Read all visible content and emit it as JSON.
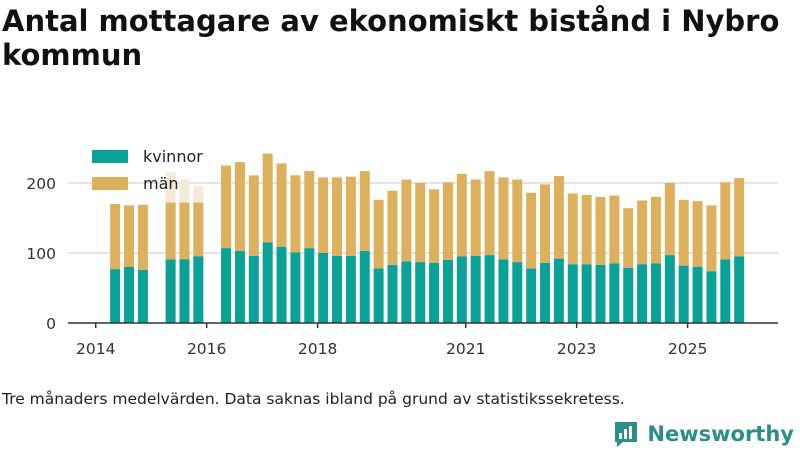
{
  "title": "Antal mottagare av ekonomiskt bistånd i Nybro kommun",
  "caption": "Tre månaders medelvärden. Data saknas ibland på grund av statistikssekretess.",
  "brand": "Newsworthy",
  "brand_icon": "newsworthy-logo-icon",
  "colors": {
    "kvinnor": "#0aa197",
    "man": "#ddb05d",
    "man_faded": "#f4ead8",
    "grid": "#dcdcdc",
    "axis": "#333333",
    "brand": "#2a8f88"
  },
  "chart_data": {
    "type": "bar",
    "stacked": true,
    "title": "Antal mottagare av ekonomiskt bistånd i Nybro kommun",
    "xlabel": "",
    "ylabel": "",
    "ylim": [
      0,
      250
    ],
    "yticks": [
      0,
      100,
      200
    ],
    "x_range": [
      2013.5,
      2026.3
    ],
    "xtick_labels": [
      "2014",
      "2016",
      "2018",
      "2021",
      "2023",
      "2025"
    ],
    "xtick_years": [
      2014,
      2016,
      2018,
      2020.67,
      2022.67,
      2024.67
    ],
    "grid": true,
    "legend": {
      "position": "top-left",
      "entries": [
        "kvinnor",
        "män"
      ]
    },
    "bar_years": [
      2014.35,
      2014.6,
      2014.85,
      2015.35,
      2015.6,
      2015.85,
      2016.35,
      2016.6,
      2016.85,
      2017.1,
      2017.35,
      2017.6,
      2017.85,
      2018.1,
      2018.35,
      2018.6,
      2018.85,
      2019.1,
      2019.35,
      2019.6,
      2019.85,
      2020.1,
      2020.35,
      2020.6,
      2020.85,
      2021.1,
      2021.35,
      2021.6,
      2021.85,
      2022.1,
      2022.35,
      2022.6,
      2022.85,
      2023.1,
      2023.35,
      2023.6,
      2023.85,
      2024.1,
      2024.35,
      2024.6,
      2024.85,
      2025.1,
      2025.35,
      2025.6
    ],
    "series": [
      {
        "name": "kvinnor",
        "values": [
          77,
          80,
          76,
          91,
          91,
          95,
          107,
          103,
          96,
          115,
          109,
          101,
          107,
          100,
          96,
          96,
          103,
          78,
          83,
          88,
          87,
          86,
          90,
          95,
          96,
          97,
          91,
          87,
          78,
          86,
          92,
          84,
          84,
          83,
          85,
          79,
          84,
          85,
          97,
          82,
          80,
          74,
          91,
          95
        ]
      },
      {
        "name": "män",
        "values": [
          93,
          88,
          93,
          81,
          81,
          77,
          118,
          127,
          115,
          127,
          119,
          110,
          110,
          108,
          112,
          113,
          114,
          98,
          106,
          117,
          113,
          105,
          111,
          118,
          109,
          120,
          117,
          118,
          108,
          112,
          118,
          101,
          99,
          97,
          97,
          85,
          91,
          95,
          103,
          94,
          94,
          94,
          110,
          112
        ]
      }
    ],
    "faded_bars": [
      {
        "year": 2015.35,
        "total": 216
      },
      {
        "year": 2015.6,
        "total": 205
      },
      {
        "year": 2015.85,
        "total": 196
      }
    ]
  }
}
